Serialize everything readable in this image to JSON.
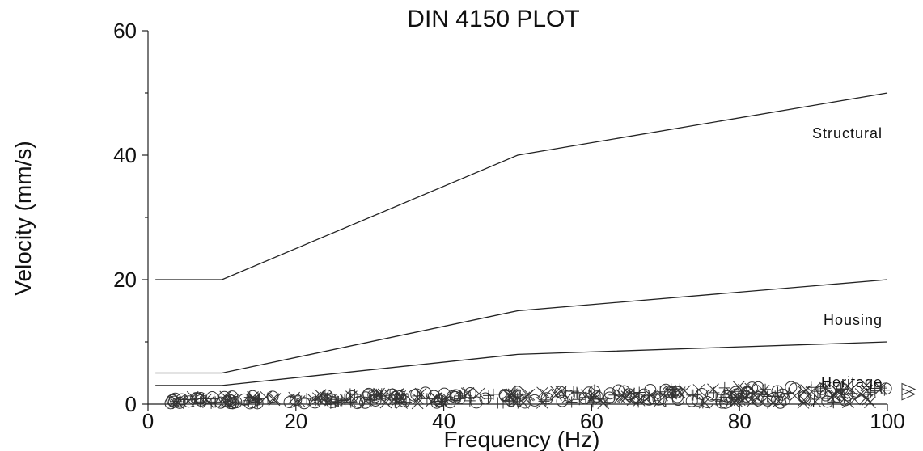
{
  "chart_data": {
    "type": "line",
    "title": "DIN 4150 PLOT",
    "xlabel": "Frequency (Hz)",
    "ylabel": "Velocity (mm/s)",
    "xlim": [
      0,
      100
    ],
    "ylim": [
      0,
      60
    ],
    "xticks": [
      0,
      20,
      40,
      60,
      80,
      100
    ],
    "yticks": [
      0,
      20,
      40,
      60
    ],
    "grid": false,
    "series": [
      {
        "name": "Structural",
        "x": [
          1,
          10,
          50,
          100
        ],
        "y": [
          20,
          20,
          40,
          50
        ]
      },
      {
        "name": "Housing",
        "x": [
          1,
          10,
          50,
          100
        ],
        "y": [
          5,
          5,
          15,
          20
        ]
      },
      {
        "name": "Heritage",
        "x": [
          1,
          10,
          50,
          100
        ],
        "y": [
          3,
          3,
          8,
          10
        ]
      }
    ],
    "scatter": {
      "marker_types": [
        "circle",
        "x",
        "plus"
      ],
      "x_range": [
        3,
        100
      ],
      "y_range": [
        0,
        3.2
      ]
    }
  }
}
